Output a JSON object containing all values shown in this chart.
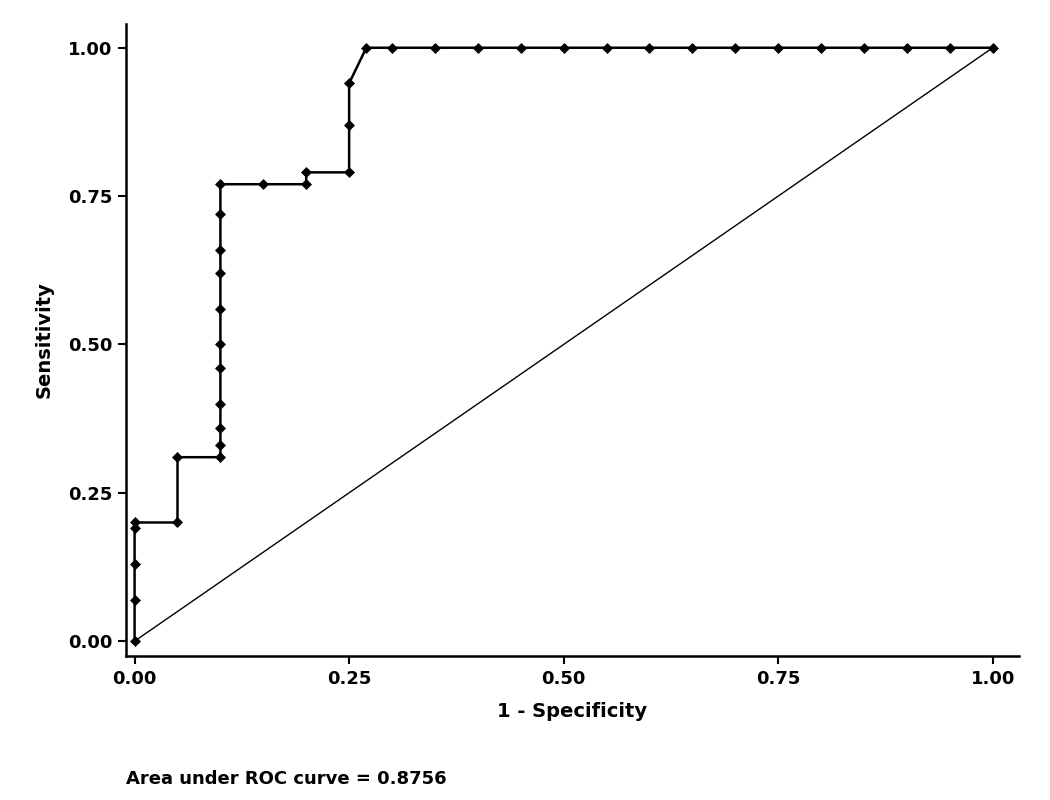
{
  "title": "",
  "xlabel": "1 - Specificity",
  "ylabel": "Sensitivity",
  "annotation": "Area under ROC curve = 0.8756",
  "background_color": "#ffffff",
  "line_color": "#000000",
  "marker_color": "#000000",
  "diagonal_color": "#000000",
  "xticks": [
    0.0,
    0.25,
    0.5,
    0.75,
    1.0
  ],
  "yticks": [
    0.0,
    0.25,
    0.5,
    0.75,
    1.0
  ],
  "roc_points": [
    [
      0.0,
      0.0
    ],
    [
      0.0,
      0.07
    ],
    [
      0.0,
      0.13
    ],
    [
      0.0,
      0.19
    ],
    [
      0.0,
      0.2
    ],
    [
      0.05,
      0.2
    ],
    [
      0.05,
      0.31
    ],
    [
      0.1,
      0.31
    ],
    [
      0.1,
      0.33
    ],
    [
      0.1,
      0.36
    ],
    [
      0.1,
      0.4
    ],
    [
      0.1,
      0.46
    ],
    [
      0.1,
      0.5
    ],
    [
      0.1,
      0.56
    ],
    [
      0.1,
      0.62
    ],
    [
      0.1,
      0.66
    ],
    [
      0.1,
      0.72
    ],
    [
      0.1,
      0.77
    ],
    [
      0.15,
      0.77
    ],
    [
      0.2,
      0.77
    ],
    [
      0.2,
      0.79
    ],
    [
      0.25,
      0.79
    ],
    [
      0.25,
      0.87
    ],
    [
      0.25,
      0.94
    ],
    [
      0.27,
      1.0
    ],
    [
      0.3,
      1.0
    ],
    [
      0.35,
      1.0
    ],
    [
      0.4,
      1.0
    ],
    [
      0.45,
      1.0
    ],
    [
      0.5,
      1.0
    ],
    [
      0.55,
      1.0
    ],
    [
      0.6,
      1.0
    ],
    [
      0.65,
      1.0
    ],
    [
      0.7,
      1.0
    ],
    [
      0.75,
      1.0
    ],
    [
      0.8,
      1.0
    ],
    [
      0.85,
      1.0
    ],
    [
      0.9,
      1.0
    ],
    [
      0.95,
      1.0
    ],
    [
      1.0,
      1.0
    ]
  ]
}
